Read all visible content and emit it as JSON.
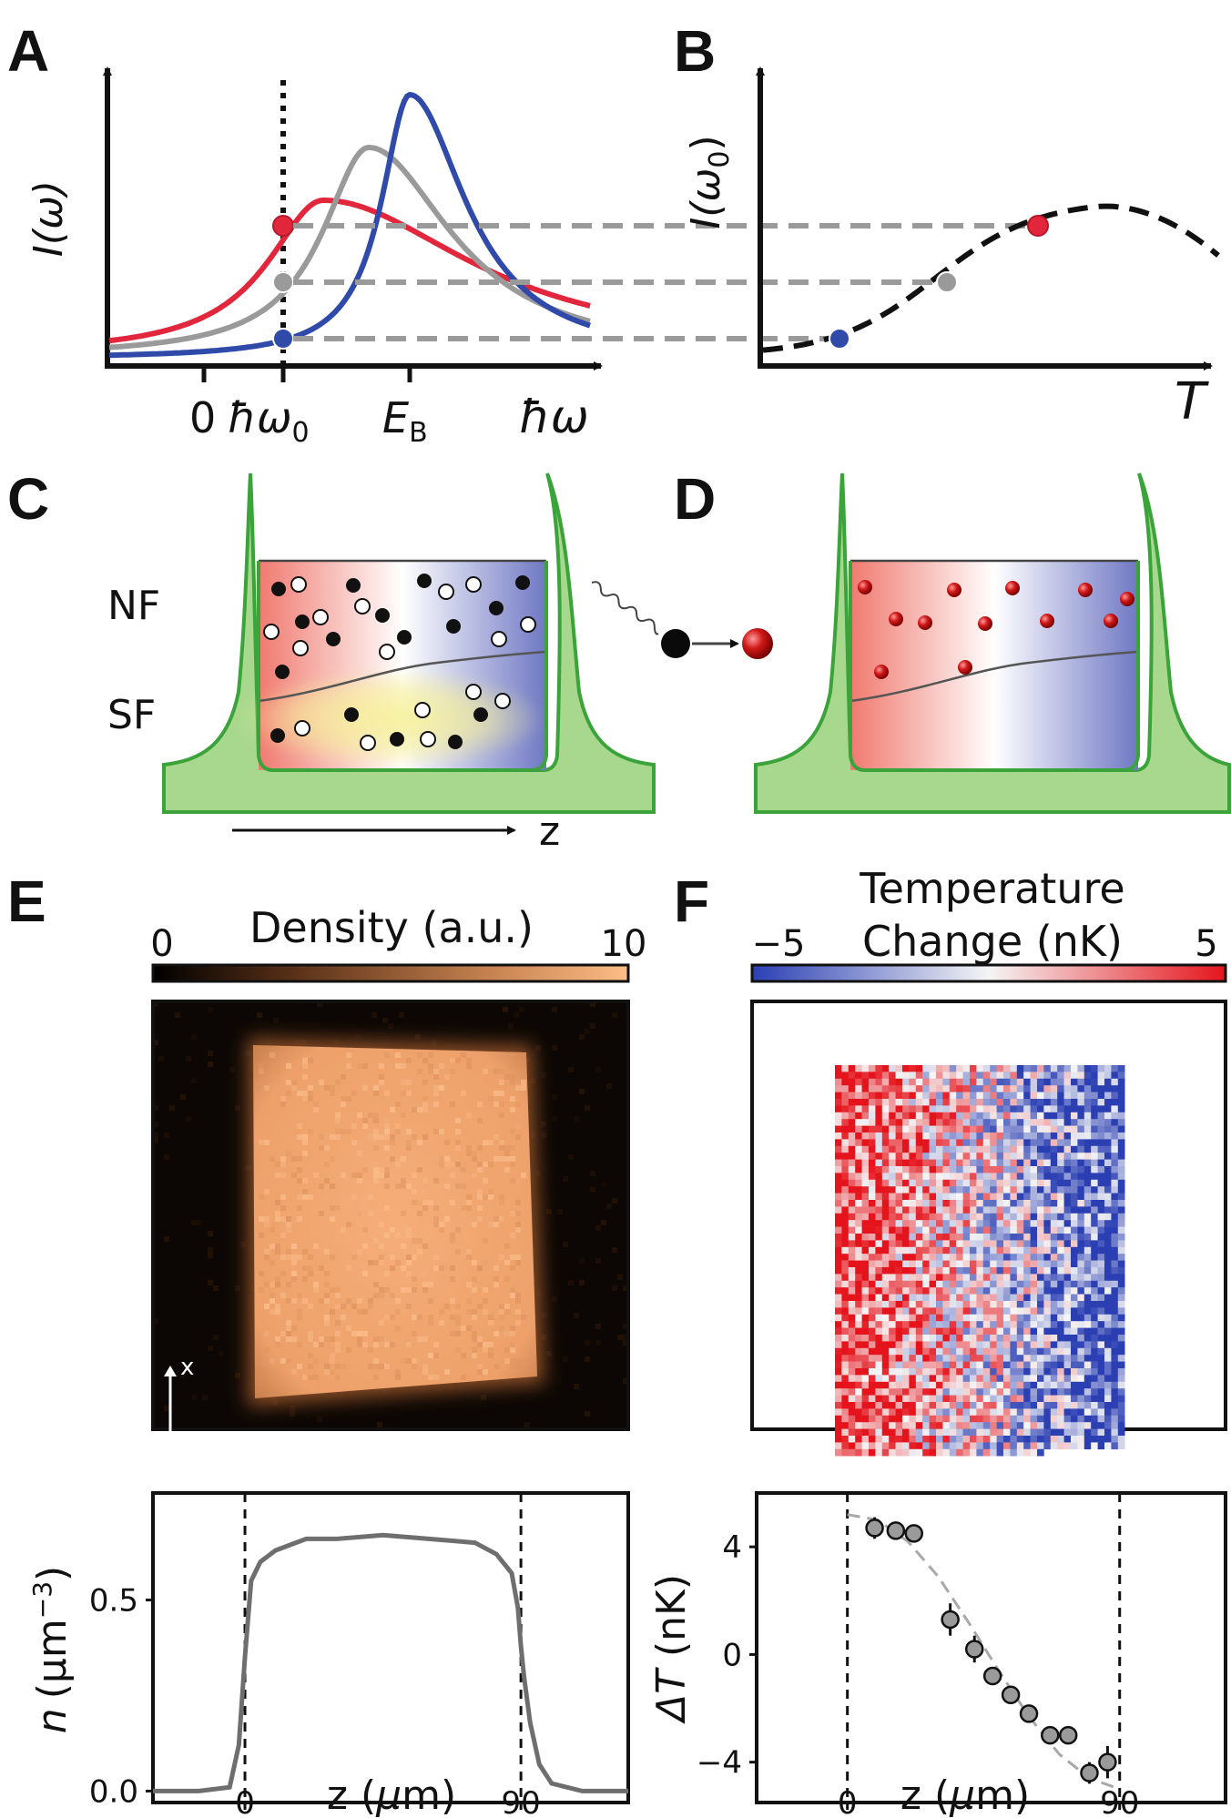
{
  "panels": {
    "A": {
      "label": "A",
      "ylabel": "I(ω)",
      "xticks": [
        "0",
        "ħω₀",
        "E_B"
      ],
      "xtick_main": {
        "zero": "0",
        "hw0": "ħω",
        "hw0_sub": "0",
        "EB": "E",
        "EB_sub": "B"
      },
      "xlabel": "ħω"
    },
    "B": {
      "label": "B",
      "ylabel": "I(ω₀)",
      "ylabel_parts": {
        "I": "I(",
        "omega": "ω",
        "sub": "0",
        "close": ")"
      },
      "xlabel": "T"
    },
    "C": {
      "label": "C",
      "nf": "NF",
      "sf": "SF",
      "axis": "z"
    },
    "D": {
      "label": "D"
    },
    "E": {
      "label": "E",
      "colorbar_label": "Density (a.u.)",
      "cmin": "0",
      "cmax": "10",
      "axis_x": "x",
      "axis_z": "z",
      "ylabel": "n (μm⁻³)",
      "ylabel_parts": {
        "n": "n",
        "unit": "(μm",
        "exp": "−3",
        "close": ")"
      },
      "xlabel": "z (μm)",
      "xlabel_parts": {
        "z": "z (",
        "mu": "μ",
        "m": "m)"
      },
      "yticks": [
        "0.0",
        "0.5"
      ],
      "xticks": [
        "0",
        "90"
      ]
    },
    "F": {
      "label": "F",
      "colorbar_label_1": "Temperature",
      "colorbar_label_2": "Change (nK)",
      "cmin": "−5",
      "cmax": "5",
      "ylabel": "ΔT (nK)",
      "ylabel_parts": {
        "dT": "ΔT",
        "unit": " (nK)"
      },
      "xlabel": "z (μm)",
      "xlabel_parts": {
        "z": "z (",
        "mu": "μ",
        "m": "m)"
      },
      "yticks": [
        "4",
        "0",
        "−4"
      ],
      "xticks": [
        "0",
        "90"
      ]
    }
  },
  "colors": {
    "red": "#e2263c",
    "gray": "#9a9a9a",
    "blue": "#2f4aa8",
    "green_fill": "#a8d88e",
    "green_line": "#3aa33a",
    "dash": "#9a9a9a",
    "bg_dark": "#0c0704",
    "cloud": "#f2a872"
  },
  "chart_data": [
    {
      "panel": "A",
      "type": "line",
      "xlabel": "ħω",
      "ylabel": "I(ω)",
      "series": [
        {
          "color": "red",
          "peak_x": 1.0,
          "peak_y": 0.78
        },
        {
          "color": "gray",
          "peak_x": 2.05,
          "peak_y": 1.02
        },
        {
          "color": "blue",
          "peak_x": 2.4,
          "peak_y": 1.35
        }
      ],
      "markers_at_hw0": [
        {
          "color": "red",
          "y": 0.6
        },
        {
          "color": "gray",
          "y": 0.4
        },
        {
          "color": "blue",
          "y": 0.12
        }
      ]
    },
    {
      "panel": "B",
      "type": "line",
      "xlabel": "T",
      "ylabel": "I(ω₀)",
      "markers": [
        {
          "color": "blue",
          "y": 0.12
        },
        {
          "color": "gray",
          "y": 0.4
        },
        {
          "color": "red",
          "y": 0.6
        }
      ]
    },
    {
      "panel": "E",
      "type": "line",
      "xlabel": "z (μm)",
      "ylabel": "n (μm⁻³)",
      "xlim": [
        -30,
        125
      ],
      "ylim": [
        -0.03,
        0.78
      ],
      "x": [
        -30,
        -15,
        -5,
        -2,
        0,
        2,
        5,
        10,
        20,
        30,
        45,
        60,
        75,
        82,
        87,
        89,
        90,
        91,
        93,
        96,
        100,
        110,
        125
      ],
      "y": [
        0.0,
        0.0,
        0.01,
        0.12,
        0.35,
        0.55,
        0.6,
        0.63,
        0.66,
        0.66,
        0.67,
        0.66,
        0.65,
        0.62,
        0.57,
        0.48,
        0.38,
        0.3,
        0.18,
        0.07,
        0.02,
        0.0,
        0.0
      ],
      "vlines": [
        0,
        90
      ]
    },
    {
      "panel": "F",
      "type": "scatter",
      "xlabel": "z (μm)",
      "ylabel": "ΔT (nK)",
      "xlim": [
        -30,
        125
      ],
      "ylim": [
        -5.5,
        6
      ],
      "x": [
        9,
        16,
        22,
        34,
        42,
        48,
        54,
        60,
        67,
        73,
        80,
        86
      ],
      "y": [
        4.7,
        4.6,
        4.5,
        1.3,
        0.2,
        -0.8,
        -1.5,
        -2.2,
        -3.0,
        -3.0,
        -4.4,
        -4.0
      ],
      "yerr": [
        0.4,
        0.3,
        0.3,
        0.6,
        0.5,
        0.3,
        0.3,
        0.3,
        0.3,
        0.3,
        0.4,
        0.6
      ],
      "fit_x": [
        0,
        10,
        20,
        30,
        40,
        50,
        60,
        70,
        80,
        90
      ],
      "fit_y": [
        5.2,
        5.0,
        4.2,
        2.9,
        1.2,
        -0.6,
        -2.3,
        -3.7,
        -4.6,
        -5.0
      ],
      "vlines": [
        0,
        90
      ]
    }
  ]
}
